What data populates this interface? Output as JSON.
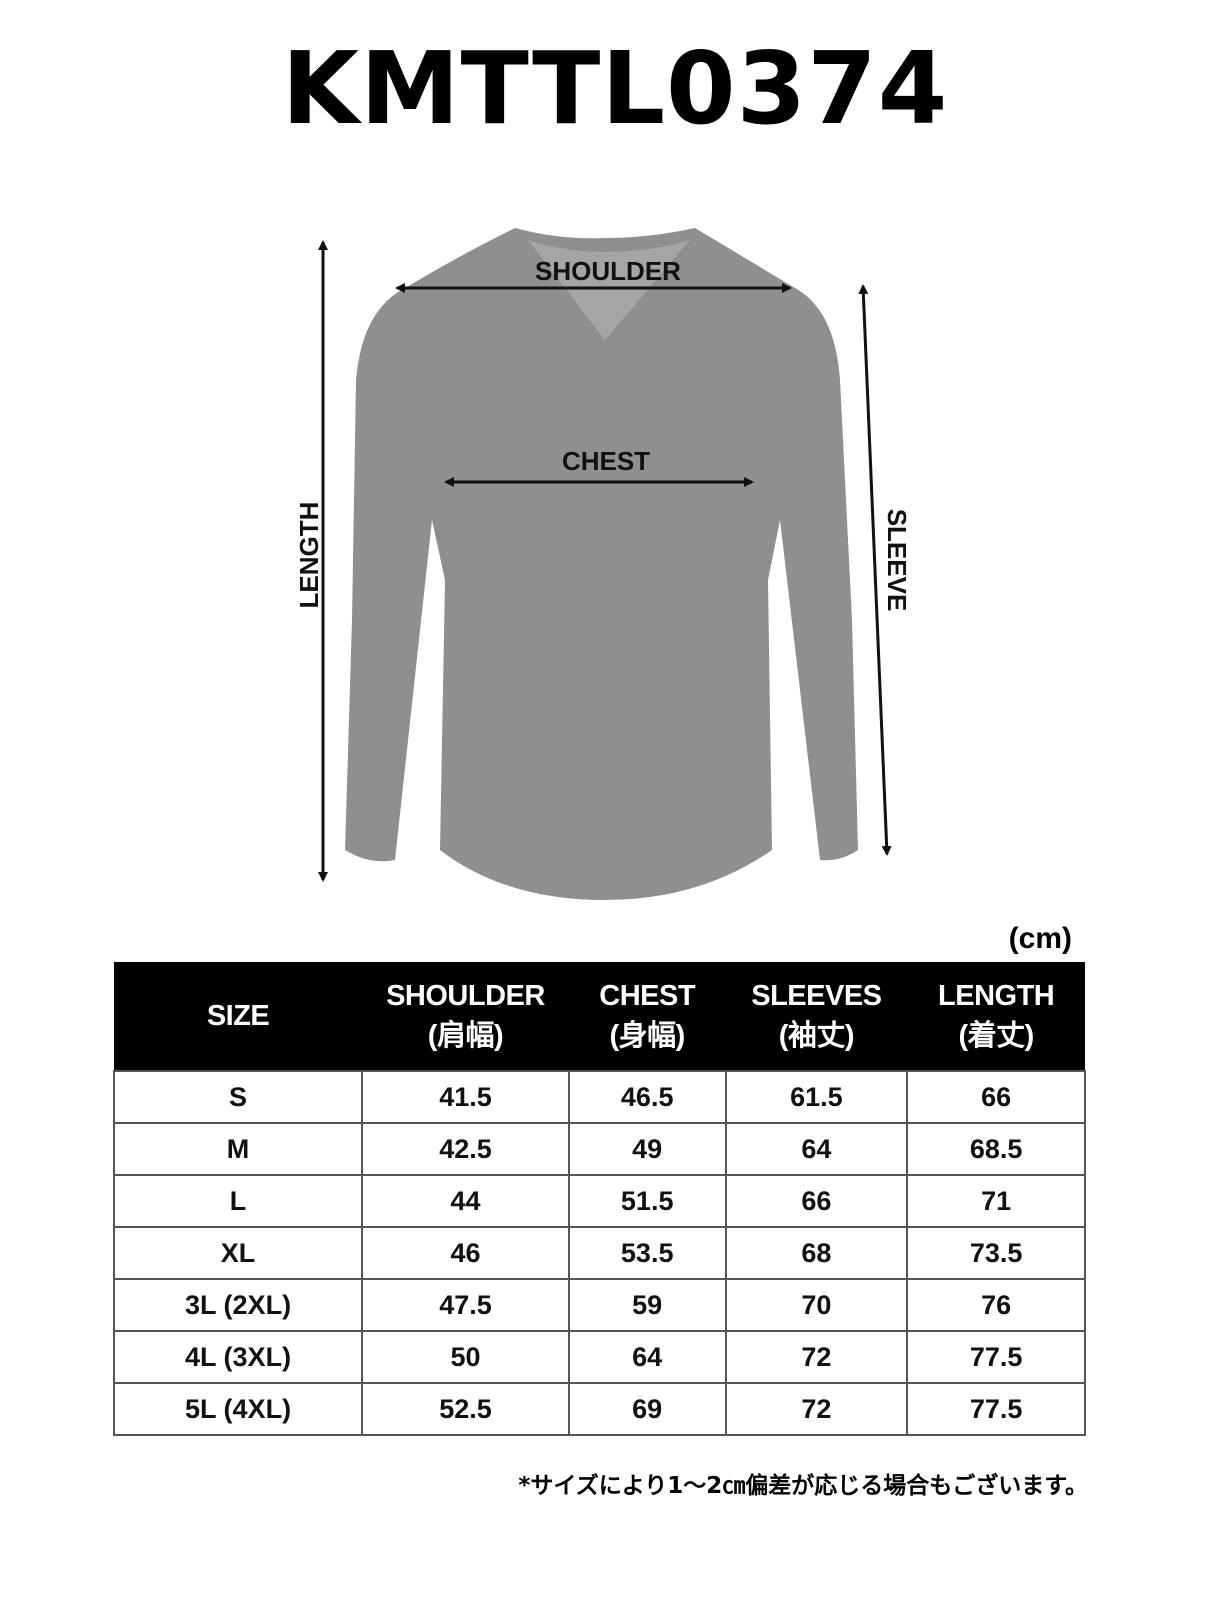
{
  "title": "KMTTL0374",
  "diagram": {
    "labels": {
      "shoulder": "SHOULDER",
      "chest": "CHEST",
      "length": "LENGTH",
      "sleeve": "SLEEVE"
    },
    "shirt_color": "#8f8f8f"
  },
  "unit": "(cm)",
  "table": {
    "headers": [
      {
        "en": "SIZE",
        "ja": ""
      },
      {
        "en": "SHOULDER",
        "ja": "(肩幅)"
      },
      {
        "en": "CHEST",
        "ja": "(身幅)"
      },
      {
        "en": "SLEEVES",
        "ja": "(袖丈)"
      },
      {
        "en": "LENGTH",
        "ja": "(着丈)"
      }
    ],
    "rows": [
      [
        "S",
        "41.5",
        "46.5",
        "61.5",
        "66"
      ],
      [
        "M",
        "42.5",
        "49",
        "64",
        "68.5"
      ],
      [
        "L",
        "44",
        "51.5",
        "66",
        "71"
      ],
      [
        "XL",
        "46",
        "53.5",
        "68",
        "73.5"
      ],
      [
        "3L (2XL)",
        "47.5",
        "59",
        "70",
        "76"
      ],
      [
        "4L (3XL)",
        "50",
        "64",
        "72",
        "77.5"
      ],
      [
        "5L (4XL)",
        "52.5",
        "69",
        "72",
        "77.5"
      ]
    ]
  },
  "note": "*サイズにより1〜2㎝偏差が応じる場合もございます。"
}
